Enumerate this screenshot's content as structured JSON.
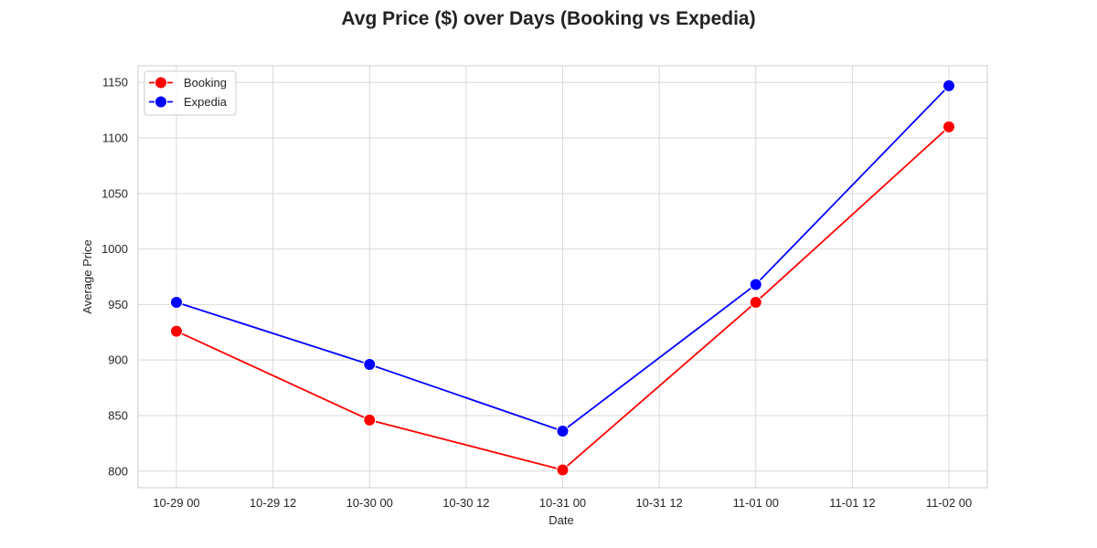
{
  "chart_data": {
    "type": "line",
    "title": "Avg Price ($) over Days (Booking vs Expedia)",
    "xlabel": "Date",
    "ylabel": "Average Price",
    "x": [
      "2024-10-29",
      "2024-10-30",
      "2024-10-31",
      "2024-11-01",
      "2024-11-02"
    ],
    "x_tick_labels": [
      "10-29 00",
      "10-29 12",
      "10-30 00",
      "10-30 12",
      "10-31 00",
      "10-31 12",
      "11-01 00",
      "11-01 12",
      "11-02 00"
    ],
    "y_ticks": [
      800,
      850,
      900,
      950,
      1000,
      1050,
      1100,
      1150
    ],
    "ylim": [
      785,
      1165
    ],
    "grid": true,
    "legend_position": "top-left",
    "series": [
      {
        "name": "Booking",
        "color": "#ff0000",
        "values": [
          926,
          846,
          801,
          952,
          1110
        ]
      },
      {
        "name": "Expedia",
        "color": "#0000ff",
        "values": [
          952,
          896,
          836,
          968,
          1147
        ]
      }
    ]
  }
}
